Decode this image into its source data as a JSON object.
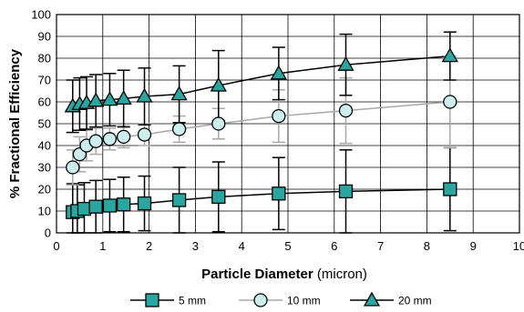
{
  "chart_data": {
    "type": "line",
    "xlabel_main": "Particle Diameter",
    "xlabel_unit": " (micron)",
    "ylabel": "% Fractional Efficiency",
    "xlim": [
      0,
      10
    ],
    "ylim": [
      0,
      100
    ],
    "x_ticks": [
      0,
      1,
      2,
      3,
      4,
      5,
      6,
      7,
      8,
      9,
      10
    ],
    "y_ticks": [
      0,
      10,
      20,
      30,
      40,
      50,
      60,
      70,
      80,
      90,
      100
    ],
    "grid": true,
    "legend_position": "bottom",
    "series": [
      {
        "name": "5 mm",
        "marker": "square",
        "line_color": "#000000",
        "marker_fill": "#2aa5a0",
        "error_color": "#000000",
        "x": [
          0.35,
          0.45,
          0.6,
          0.85,
          1.15,
          1.45,
          1.9,
          2.65,
          3.5,
          4.8,
          6.25,
          8.5
        ],
        "y": [
          9.5,
          10,
          11,
          12,
          12.5,
          13,
          13.5,
          15,
          16.5,
          18,
          19,
          20
        ],
        "err": [
          13,
          12,
          12,
          12,
          12,
          12.5,
          12.5,
          15,
          16,
          16.5,
          19,
          19
        ]
      },
      {
        "name": "10 mm",
        "marker": "circle",
        "line_color": "#a8a8a8",
        "marker_fill": "#cdeeee",
        "error_color": "#a8a8a8",
        "x": [
          0.35,
          0.5,
          0.65,
          0.85,
          1.15,
          1.45,
          1.9,
          2.65,
          3.5,
          4.8,
          6.25,
          8.5
        ],
        "y": [
          30,
          36,
          40,
          42,
          43,
          44,
          45,
          47.5,
          50,
          53.5,
          56,
          60
        ],
        "err": [
          8,
          8,
          7,
          6,
          5,
          5,
          5,
          6,
          7,
          12,
          15,
          21
        ]
      },
      {
        "name": "20 mm",
        "marker": "triangle",
        "line_color": "#000000",
        "marker_fill": "#2aa5a0",
        "error_color": "#000000",
        "x": [
          0.35,
          0.5,
          0.65,
          0.85,
          1.15,
          1.45,
          1.9,
          2.65,
          3.5,
          4.8,
          6.25,
          8.5
        ],
        "y": [
          58,
          59,
          59.5,
          60.5,
          61,
          61.5,
          62.5,
          63.5,
          67.5,
          73,
          77,
          81
        ],
        "err": [
          12,
          12,
          12,
          12,
          12,
          13,
          13,
          13,
          16,
          12,
          14,
          11
        ]
      }
    ]
  }
}
